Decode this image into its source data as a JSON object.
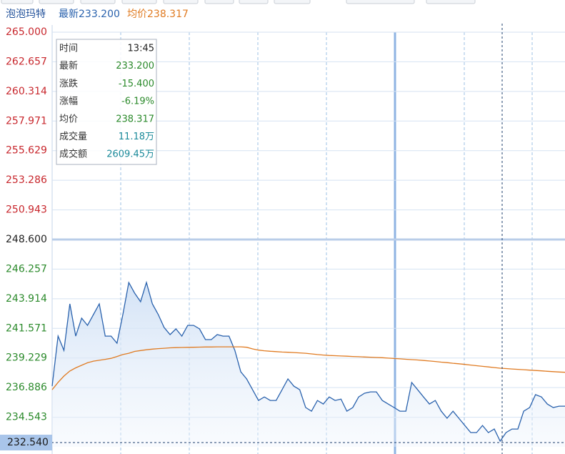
{
  "header": {
    "name": "泡泡玛特",
    "latest": "最新233.200",
    "avg": "均价238.317"
  },
  "tooltip": {
    "rows": [
      [
        "时间",
        "13:45"
      ],
      [
        "最新",
        "233.200"
      ],
      [
        "涨跌",
        "-15.400"
      ],
      [
        "涨幅",
        "-6.19%"
      ],
      [
        "均价",
        "238.317"
      ],
      [
        "成交量",
        "11.18万"
      ],
      [
        "成交额",
        "2609.45万"
      ]
    ]
  },
  "chart_data": {
    "type": "line",
    "ylim": [
      232.2,
      265
    ],
    "yticks": [
      {
        "value": 265,
        "label": "265.000"
      },
      262.657,
      260.314,
      257.971,
      255.629,
      253.286,
      250.943,
      {
        "value": 248.6,
        "label": "248.600"
      },
      246.257,
      243.914,
      241.571,
      239.229,
      236.886,
      234.543
    ],
    "prev_close": 248.6,
    "cursor_price": {
      "value": 232.54,
      "label": "232.540"
    },
    "grid": true,
    "up_color": "#c8272d",
    "down_color": "#2b8a2b",
    "flat_color": "#222222",
    "series": [
      {
        "color": "#2a62ad",
        "fill": true,
        "values": [
          237.0,
          240.96,
          239.83,
          243.51,
          240.96,
          242.38,
          241.81,
          242.66,
          243.51,
          240.96,
          240.96,
          240.4,
          242.66,
          245.2,
          244.36,
          243.68,
          245.2,
          243.51,
          242.66,
          241.64,
          241.08,
          241.53,
          240.96,
          241.81,
          241.81,
          241.53,
          240.68,
          240.68,
          241.08,
          240.96,
          240.96,
          239.83,
          238.13,
          237.57,
          236.72,
          235.87,
          236.15,
          235.87,
          235.87,
          236.72,
          237.57,
          237.0,
          236.72,
          235.31,
          235.02,
          235.87,
          235.59,
          236.15,
          235.87,
          235.98,
          235.02,
          235.31,
          236.15,
          236.44,
          236.55,
          236.55,
          235.87,
          235.59,
          235.31,
          235.02,
          235.02,
          237.29,
          236.72,
          236.15,
          235.59,
          235.87,
          235.02,
          234.46,
          235.02,
          234.46,
          233.89,
          233.33,
          233.33,
          233.89,
          233.33,
          233.61,
          232.65,
          233.33,
          233.61,
          233.61,
          235.02,
          235.31,
          236.33,
          236.15,
          235.59,
          235.31,
          235.42,
          235.42
        ]
      },
      {
        "color": "#e07b22",
        "fill": false,
        "values": [
          236.72,
          237.3,
          237.8,
          238.2,
          238.45,
          238.65,
          238.85,
          238.98,
          239.05,
          239.12,
          239.2,
          239.35,
          239.5,
          239.6,
          239.75,
          239.82,
          239.88,
          239.93,
          239.97,
          240.0,
          240.03,
          240.05,
          240.06,
          240.07,
          240.08,
          240.09,
          240.1,
          240.1,
          240.11,
          240.11,
          240.11,
          240.11,
          240.11,
          240.08,
          239.95,
          239.85,
          239.8,
          239.76,
          239.73,
          239.7,
          239.68,
          239.66,
          239.63,
          239.6,
          239.55,
          239.5,
          239.46,
          239.43,
          239.41,
          239.39,
          239.37,
          239.35,
          239.33,
          239.31,
          239.29,
          239.27,
          239.25,
          239.22,
          239.19,
          239.16,
          239.13,
          239.1,
          239.07,
          239.03,
          238.99,
          238.95,
          238.9,
          238.86,
          238.81,
          238.77,
          238.72,
          238.67,
          238.62,
          238.57,
          238.52,
          238.47,
          238.42,
          238.39,
          238.36,
          238.33,
          238.3,
          238.27,
          238.24,
          238.21,
          238.18,
          238.15,
          238.12,
          238.1
        ]
      }
    ]
  }
}
